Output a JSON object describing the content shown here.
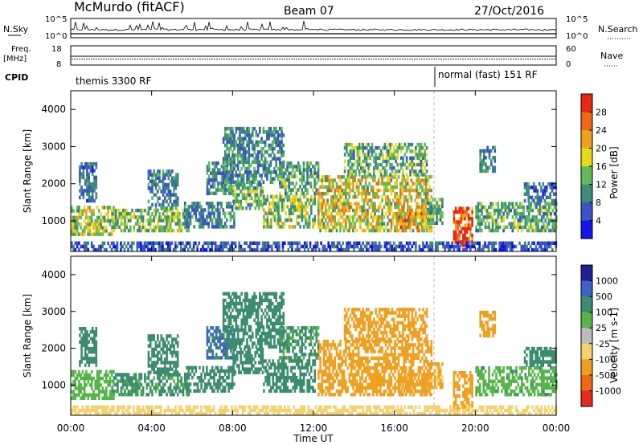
{
  "header": {
    "station": "McMurdo (fitACF)",
    "beam": "Beam 07",
    "date": "27/Oct/2016"
  },
  "top_panels": {
    "noise_left_label": "N.Sky",
    "noise_right_label": "N.Search",
    "noise_ticks_left": [
      "10^5",
      "10^0"
    ],
    "noise_ticks_right": [
      "10^5",
      "10^0"
    ],
    "freq_label": "Freq.",
    "freq_unit": "[MHz]",
    "freq_ticks": [
      "18",
      "8"
    ],
    "nave_label": "Nave",
    "nave_ticks": [
      "60",
      "0"
    ],
    "cpid_label": "CPID",
    "cpid_segments": [
      {
        "start_h": 0,
        "end_h": 18,
        "label": "themis 3300 RF"
      },
      {
        "start_h": 18,
        "end_h": 24,
        "label": "normal (fast) 151 RF"
      }
    ]
  },
  "x_axis": {
    "label": "Time UT",
    "ticks": [
      "00:00",
      "04:00",
      "08:00",
      "12:00",
      "16:00",
      "20:00",
      "00:00"
    ],
    "range_h": [
      0,
      24
    ]
  },
  "chart_data": [
    {
      "type": "heatmap",
      "name": "power",
      "ylabel": "Slant Range [km]",
      "ylim": [
        180,
        4500
      ],
      "yticks": [
        1000,
        2000,
        3000,
        4000
      ],
      "colorbar": {
        "label": "Power [dB]",
        "ticks": [
          "4",
          "8",
          "12",
          "16",
          "20",
          "24",
          "28"
        ],
        "range": [
          0,
          32
        ],
        "colors": [
          "#1414f0",
          "#3a54c8",
          "#3c8c78",
          "#60ba5a",
          "#e8d81c",
          "#f0a020",
          "#ec6a14",
          "#e82814"
        ]
      },
      "regions": [
        {
          "t": [
            0.0,
            2.1
          ],
          "r": [
            600,
            1400
          ],
          "v": 16
        },
        {
          "t": [
            0.4,
            1.3
          ],
          "r": [
            1500,
            2500
          ],
          "v": 8
        },
        {
          "t": [
            2.0,
            5.8
          ],
          "r": [
            700,
            1300
          ],
          "v": 14
        },
        {
          "t": [
            3.8,
            5.3
          ],
          "r": [
            1300,
            2300
          ],
          "v": 9
        },
        {
          "t": [
            5.6,
            8.1
          ],
          "r": [
            800,
            1500
          ],
          "v": 9
        },
        {
          "t": [
            6.7,
            8.0
          ],
          "r": [
            1700,
            2600
          ],
          "v": 10
        },
        {
          "t": [
            7.5,
            10.5
          ],
          "r": [
            2000,
            3500
          ],
          "v": 10
        },
        {
          "t": [
            8.0,
            9.5
          ],
          "r": [
            1300,
            2000
          ],
          "v": 13
        },
        {
          "t": [
            9.5,
            12.1
          ],
          "r": [
            800,
            1700
          ],
          "v": 15
        },
        {
          "t": [
            10.3,
            12.2
          ],
          "r": [
            1700,
            2600
          ],
          "v": 12
        },
        {
          "t": [
            12.2,
            17.8
          ],
          "r": [
            700,
            2200
          ],
          "v": 18
        },
        {
          "t": [
            13.5,
            17.6
          ],
          "r": [
            2200,
            3100
          ],
          "v": 13
        },
        {
          "t": [
            16.2,
            17.8
          ],
          "r": [
            700,
            1300
          ],
          "v": 22
        },
        {
          "t": [
            17.6,
            18.4
          ],
          "r": [
            900,
            1600
          ],
          "v": 12
        },
        {
          "t": [
            18.9,
            19.8
          ],
          "r": [
            300,
            1300
          ],
          "v": 28
        },
        {
          "t": [
            20.0,
            24.0
          ],
          "r": [
            700,
            1500
          ],
          "v": 12
        },
        {
          "t": [
            20.2,
            21.0
          ],
          "r": [
            2300,
            3000
          ],
          "v": 9
        },
        {
          "t": [
            22.4,
            24.0
          ],
          "r": [
            1500,
            2000
          ],
          "v": 8
        },
        {
          "t": [
            0.0,
            24.0
          ],
          "r": [
            180,
            450
          ],
          "v": 6
        }
      ]
    },
    {
      "type": "heatmap",
      "name": "velocity",
      "ylabel": "Slant Range [km]",
      "ylim": [
        180,
        4500
      ],
      "yticks": [
        1000,
        2000,
        3000,
        4000
      ],
      "colorbar": {
        "label": "Velocity [m s-1]",
        "ticks": [
          "1000",
          "500",
          "100",
          "25",
          "-25",
          "-100",
          "-500",
          "-1000"
        ],
        "colors": [
          "#1e1e96",
          "#3a64c8",
          "#3c8c6e",
          "#56b44a",
          "#bcbcbc",
          "#f5d26e",
          "#f0a020",
          "#ec6a14",
          "#e8281c"
        ]
      },
      "regions": [
        {
          "t": [
            0.0,
            2.1
          ],
          "r": [
            600,
            1400
          ],
          "v": 60
        },
        {
          "t": [
            0.4,
            1.3
          ],
          "r": [
            1500,
            2500
          ],
          "v": 300
        },
        {
          "t": [
            2.0,
            5.8
          ],
          "r": [
            700,
            1300
          ],
          "v": 120
        },
        {
          "t": [
            3.8,
            5.3
          ],
          "r": [
            1300,
            2300
          ],
          "v": 300
        },
        {
          "t": [
            5.6,
            8.1
          ],
          "r": [
            800,
            1500
          ],
          "v": 200
        },
        {
          "t": [
            6.7,
            8.0
          ],
          "r": [
            1700,
            2600
          ],
          "v": 500
        },
        {
          "t": [
            7.5,
            10.5
          ],
          "r": [
            2000,
            3500
          ],
          "v": 150
        },
        {
          "t": [
            8.0,
            9.5
          ],
          "r": [
            1300,
            2000
          ],
          "v": 200
        },
        {
          "t": [
            9.5,
            12.1
          ],
          "r": [
            800,
            1700
          ],
          "v": 150
        },
        {
          "t": [
            10.3,
            12.2
          ],
          "r": [
            1700,
            2600
          ],
          "v": 120
        },
        {
          "t": [
            12.2,
            17.8
          ],
          "r": [
            700,
            2200
          ],
          "v": -300
        },
        {
          "t": [
            13.5,
            17.6
          ],
          "r": [
            2200,
            3100
          ],
          "v": -250
        },
        {
          "t": [
            16.2,
            17.8
          ],
          "r": [
            700,
            1300
          ],
          "v": -300
        },
        {
          "t": [
            17.6,
            18.4
          ],
          "r": [
            900,
            1600
          ],
          "v": -120
        },
        {
          "t": [
            18.9,
            19.8
          ],
          "r": [
            300,
            1300
          ],
          "v": -300
        },
        {
          "t": [
            20.0,
            24.0
          ],
          "r": [
            700,
            1500
          ],
          "v": 80
        },
        {
          "t": [
            20.2,
            21.0
          ],
          "r": [
            2300,
            3000
          ],
          "v": -200
        },
        {
          "t": [
            22.4,
            24.0
          ],
          "r": [
            1500,
            2000
          ],
          "v": 150
        },
        {
          "t": [
            0.0,
            24.0
          ],
          "r": [
            180,
            450
          ],
          "v": -60
        }
      ]
    }
  ]
}
